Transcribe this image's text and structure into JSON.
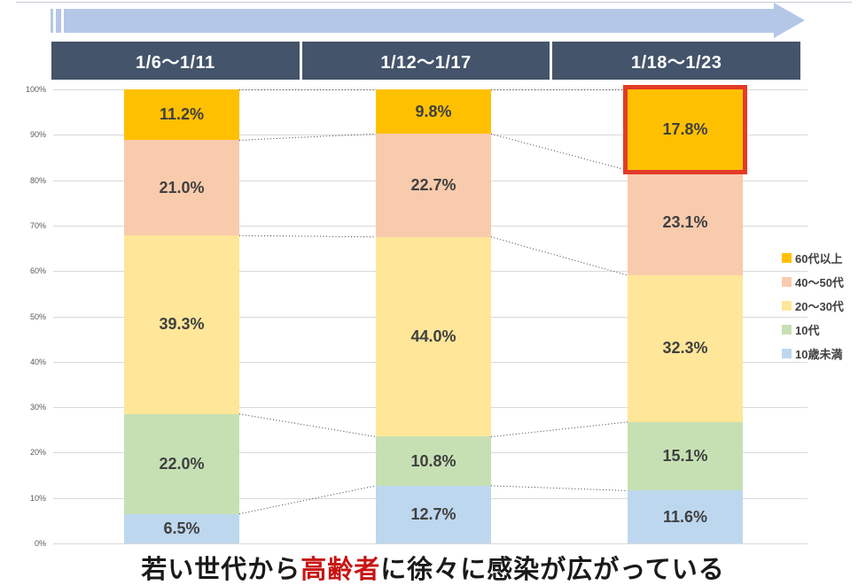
{
  "header": {
    "periods": [
      "1/6〜1/11",
      "1/12〜1/17",
      "1/18〜1/23"
    ]
  },
  "chart_data": {
    "type": "bar",
    "subtype": "stacked-100-percent-column",
    "title": "",
    "categories": [
      "1/6〜1/11",
      "1/12〜1/17",
      "1/18〜1/23"
    ],
    "series": [
      {
        "name": "60代以上",
        "color": "#FFC000",
        "values": [
          11.2,
          9.8,
          17.8
        ]
      },
      {
        "name": "40〜50代",
        "color": "#F8CBAD",
        "values": [
          21.0,
          22.7,
          23.1
        ]
      },
      {
        "name": "20〜30代",
        "color": "#FFE699",
        "values": [
          39.3,
          44.0,
          32.3
        ]
      },
      {
        "name": "10代",
        "color": "#C6E0B4",
        "values": [
          22.0,
          10.8,
          15.1
        ]
      },
      {
        "name": "10歳未満",
        "color": "#BDD7EE",
        "values": [
          6.5,
          12.7,
          11.6
        ]
      }
    ],
    "data_labels": [
      [
        "11.2%",
        "9.8%",
        "17.8%"
      ],
      [
        "21.0%",
        "22.7%",
        "23.1%"
      ],
      [
        "39.3%",
        "44.0%",
        "32.3%"
      ],
      [
        "22.0%",
        "10.8%",
        "15.1%"
      ],
      [
        "6.5%",
        "12.7%",
        "11.6%"
      ]
    ],
    "y_ticks_percent": [
      0,
      10,
      20,
      30,
      40,
      50,
      60,
      70,
      80,
      90,
      100
    ],
    "y_tick_suffix": "%",
    "ylim": [
      0,
      100
    ],
    "grid": true,
    "legend_position": "right",
    "connector_lines": "dotted between segment boundaries of adjacent bars",
    "highlight": {
      "category_index": 2,
      "series_name": "60代以上",
      "value_label": "17.8%",
      "border_color": "#E33B26"
    }
  },
  "caption": {
    "prefix": "若い世代から",
    "highlight": "高齢者",
    "suffix": "に徐々に感染が広がっている",
    "highlight_color": "#C81414"
  },
  "colors": {
    "header_box": "#44546A",
    "arrow": "#B4C7E7",
    "gridline": "#D9D9D9",
    "axis_label": "#595959",
    "data_label": "#404040",
    "connector": "#404040"
  }
}
